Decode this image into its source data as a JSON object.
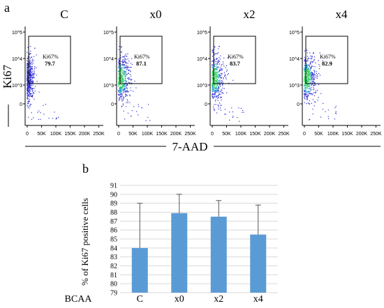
{
  "panel_a": {
    "label": "a",
    "x_axis_label": "7-AAD",
    "y_axis_label": "Ki67",
    "gate_label": "Ki67%",
    "x_tick_labels": [
      "0",
      "50K",
      "100K",
      "150K",
      "200K",
      "250K"
    ],
    "y_tick_labels": [
      "10^5",
      "10^4",
      "10^3",
      "0"
    ],
    "plots": [
      {
        "title": "C",
        "gate_value": "79.7"
      },
      {
        "title": "x0",
        "gate_value": "87.1"
      },
      {
        "title": "x2",
        "gate_value": "83.7"
      },
      {
        "title": "x4",
        "gate_value": "82.9"
      }
    ],
    "colors": {
      "dots_low": "#2b2bd6",
      "dots_mid": "#14a0c8",
      "dots_high": "#2fcf5a"
    }
  },
  "chart_data": {
    "type": "bar",
    "panel_label": "b",
    "title": "",
    "xlabel": "BCAA",
    "ylabel": "% of Ki67 positive cells",
    "categories": [
      "C",
      "x0",
      "x2",
      "x4"
    ],
    "values": [
      84.0,
      87.9,
      87.5,
      85.5
    ],
    "error_upper": [
      5.0,
      2.1,
      1.8,
      3.3
    ],
    "ylim": [
      79,
      91
    ],
    "y_ticks": [
      79,
      80,
      81,
      82,
      83,
      84,
      85,
      86,
      87,
      88,
      89,
      90,
      91
    ],
    "grid": true,
    "bar_color": "#5b9bd5",
    "gridline_color": "#d9d9d9"
  }
}
